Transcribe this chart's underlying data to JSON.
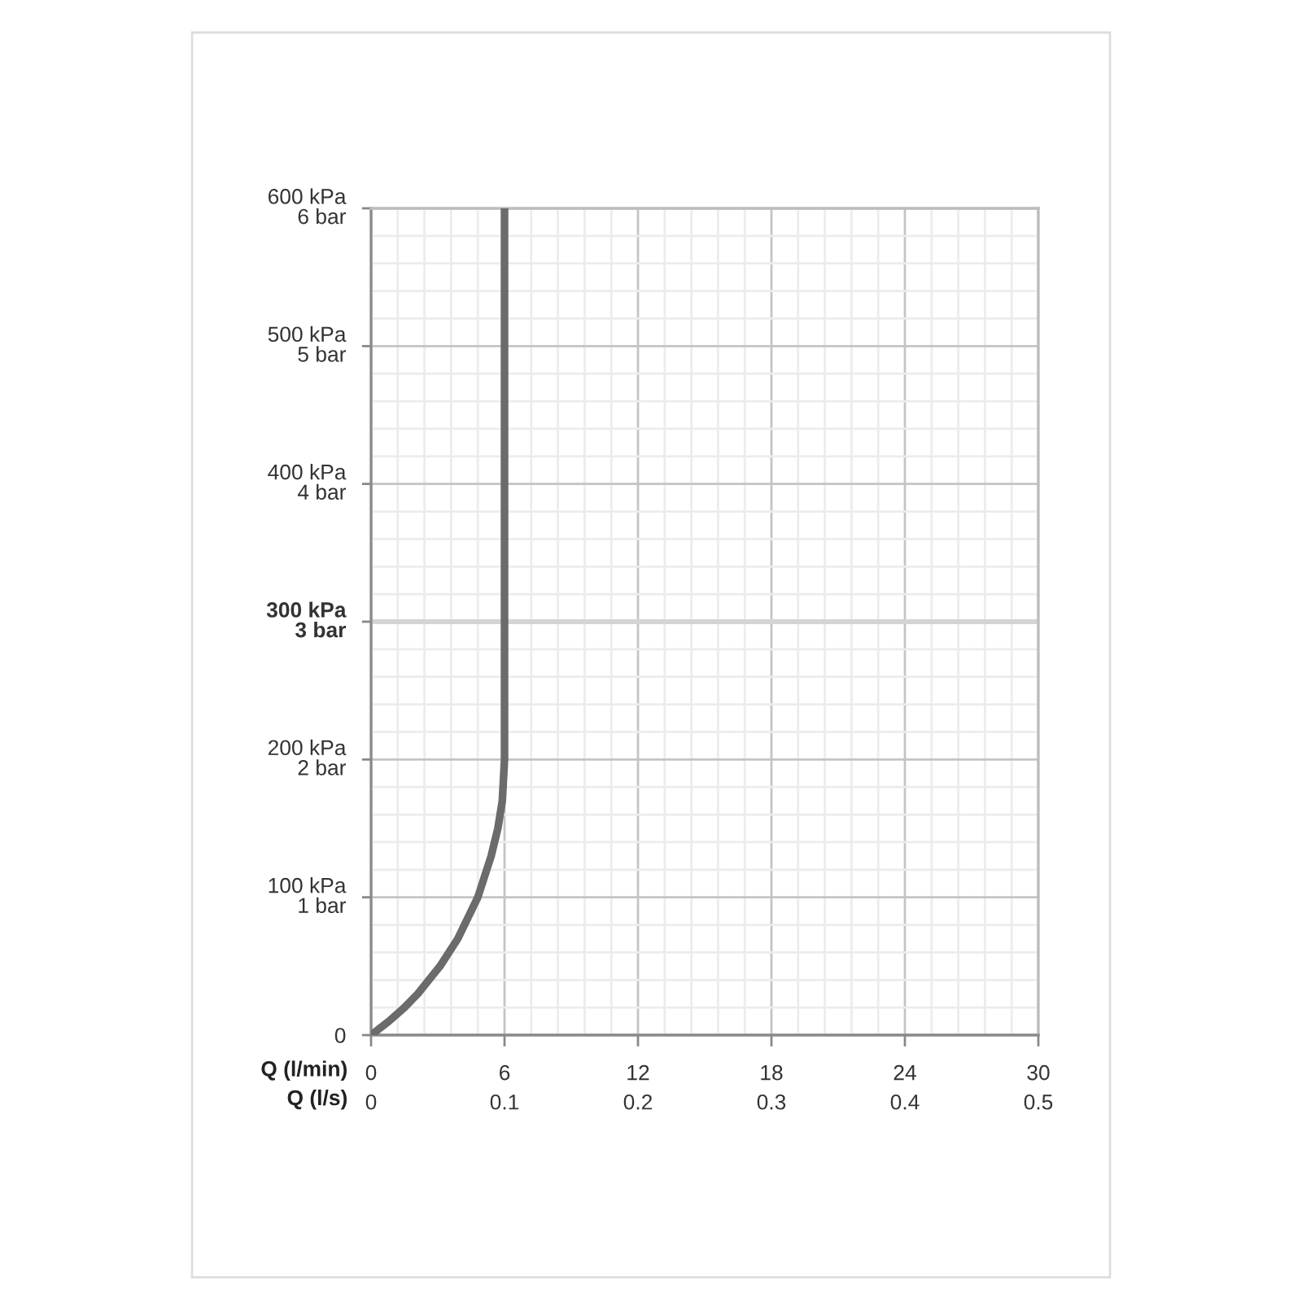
{
  "chart_data": {
    "type": "line",
    "xlabel": "Q (l/min)",
    "x2label": "Q (l/s)",
    "xlim": [
      0,
      30
    ],
    "xticks": [
      0,
      6,
      12,
      18,
      24,
      30
    ],
    "x2lim": [
      0,
      0.5
    ],
    "x2ticks": [
      0,
      0.1,
      0.2,
      0.3,
      0.4,
      0.5
    ],
    "ylim": [
      0,
      600
    ],
    "yticks": [
      0,
      {
        "value": 100,
        "label": "100 kPa"
      },
      {
        "value": 200,
        "label": "200 kPa"
      },
      {
        "value": 300,
        "label": "300 kPa"
      },
      {
        "value": 400,
        "label": "400 kPa"
      },
      {
        "value": 500,
        "label": "500 kPa"
      },
      {
        "value": 600,
        "label": "600 kPa"
      }
    ],
    "y2lim": [
      0,
      6
    ],
    "y2ticks": [
      {
        "value": 1,
        "label": "1 bar"
      },
      {
        "value": 2,
        "label": "2 bar"
      },
      {
        "value": 3,
        "label": "3 bar"
      },
      {
        "value": 4,
        "label": "4 bar"
      },
      {
        "value": 5,
        "label": "5 bar"
      },
      {
        "value": 6,
        "label": "6 bar"
      }
    ],
    "series": [
      {
        "color": "#6b6b6b",
        "x": [
          0,
          0.8,
          1.5,
          2.1,
          3.1,
          3.9,
          4.8,
          5.4,
          5.7,
          5.9,
          6,
          6
        ],
        "values": [
          0,
          10,
          20,
          30,
          50,
          70,
          100,
          130,
          150,
          170,
          200,
          600
        ]
      }
    ],
    "ref_lines": [
      {
        "axis": "y",
        "value": 300,
        "color": "#d4d4d4"
      }
    ],
    "grid": true,
    "line_style": "solid"
  }
}
